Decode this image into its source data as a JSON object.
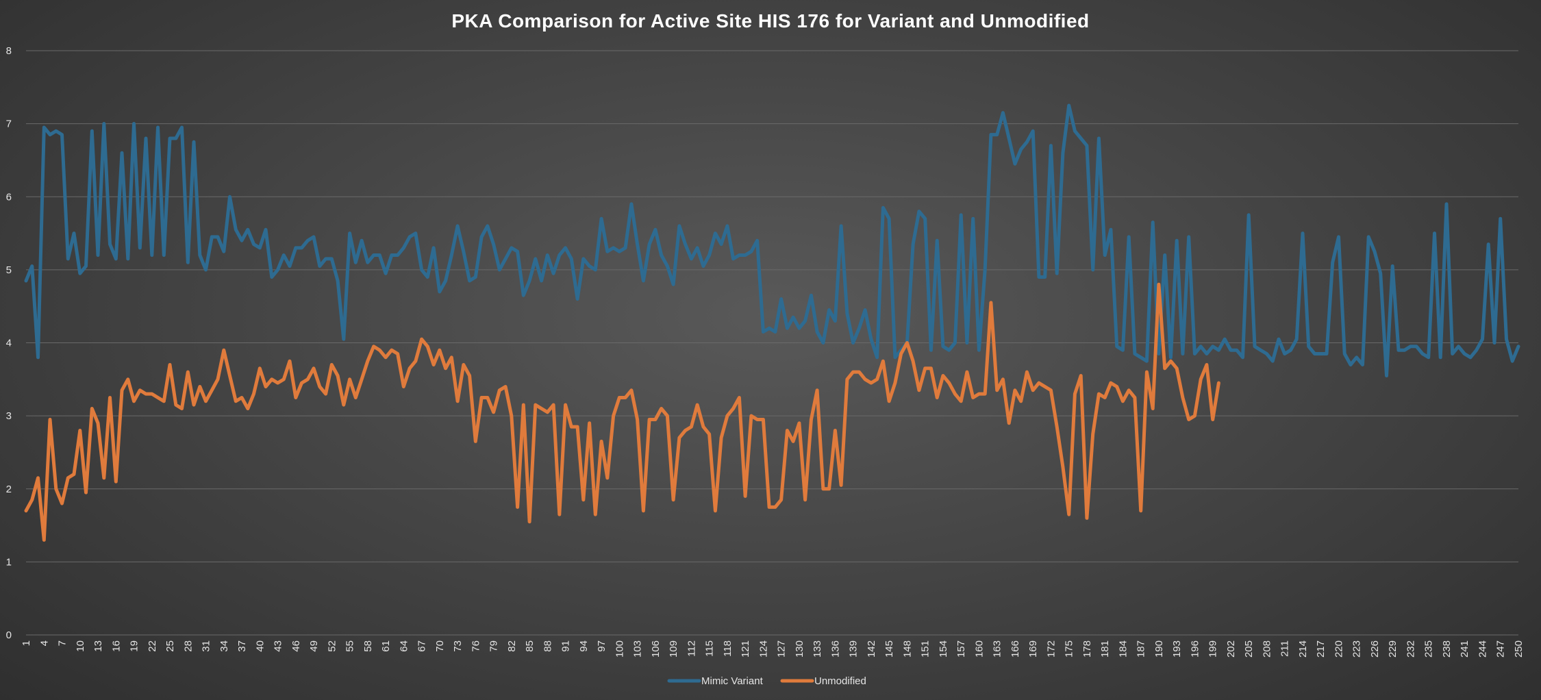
{
  "chart_data": {
    "type": "line",
    "title": "PKA Comparison for Active Site HIS 176 for Variant and Unmodified",
    "xlabel": "",
    "ylabel": "",
    "ylim": [
      0,
      8
    ],
    "yticks": [
      0,
      1,
      2,
      3,
      4,
      5,
      6,
      7,
      8
    ],
    "x_range": [
      1,
      250
    ],
    "x_tick_labels": [
      "1",
      "4",
      "7",
      "10",
      "13",
      "16",
      "19",
      "22",
      "25",
      "28",
      "31",
      "34",
      "37",
      "40",
      "43",
      "46",
      "49",
      "52",
      "55",
      "58",
      "61",
      "64",
      "67",
      "70",
      "73",
      "76",
      "79",
      "82",
      "85",
      "88",
      "91",
      "94",
      "97",
      "100",
      "103",
      "106",
      "109",
      "112",
      "115",
      "118",
      "121",
      "124",
      "127",
      "130",
      "133",
      "136",
      "139",
      "142",
      "145",
      "148",
      "151",
      "154",
      "157",
      "160",
      "163",
      "166",
      "169",
      "172",
      "175",
      "178",
      "181",
      "184",
      "187",
      "190",
      "193",
      "196",
      "199",
      "202",
      "205",
      "208",
      "211",
      "214",
      "217",
      "220",
      "223",
      "226",
      "229",
      "232",
      "235",
      "238",
      "241",
      "244",
      "247",
      "250"
    ],
    "grid": true,
    "legend_position": "bottom",
    "series": [
      {
        "name": "Mimic Variant",
        "color": "#2e6b91",
        "values": [
          4.85,
          5.05,
          3.8,
          6.95,
          6.85,
          6.9,
          6.85,
          5.15,
          5.5,
          4.95,
          5.05,
          6.9,
          5.2,
          7.0,
          5.35,
          5.15,
          6.6,
          5.15,
          7.0,
          5.3,
          6.8,
          5.2,
          6.95,
          5.2,
          6.8,
          6.8,
          6.95,
          5.1,
          6.75,
          5.2,
          5.0,
          5.45,
          5.45,
          5.25,
          6.0,
          5.55,
          5.4,
          5.55,
          5.35,
          5.3,
          5.55,
          4.9,
          5.0,
          5.2,
          5.05,
          5.3,
          5.3,
          5.4,
          5.45,
          5.05,
          5.15,
          5.15,
          4.85,
          4.05,
          5.5,
          5.1,
          5.4,
          5.1,
          5.2,
          5.2,
          4.95,
          5.2,
          5.2,
          5.3,
          5.45,
          5.5,
          5.0,
          4.9,
          5.3,
          4.7,
          4.85,
          5.2,
          5.6,
          5.25,
          4.85,
          4.9,
          5.45,
          5.6,
          5.35,
          5.0,
          5.15,
          5.3,
          5.25,
          4.65,
          4.85,
          5.15,
          4.85,
          5.2,
          4.95,
          5.2,
          5.3,
          5.15,
          4.6,
          5.15,
          5.05,
          5.0,
          5.7,
          5.25,
          5.3,
          5.25,
          5.3,
          5.9,
          5.35,
          4.85,
          5.35,
          5.55,
          5.2,
          5.05,
          4.8,
          5.6,
          5.35,
          5.15,
          5.3,
          5.05,
          5.2,
          5.5,
          5.35,
          5.6,
          5.15,
          5.2,
          5.2,
          5.25,
          5.4,
          4.15,
          4.2,
          4.15,
          4.6,
          4.2,
          4.35,
          4.2,
          4.3,
          4.65,
          4.15,
          4.0,
          4.45,
          4.3,
          5.6,
          4.4,
          4.0,
          4.2,
          4.45,
          4.05,
          3.8,
          5.85,
          5.7,
          3.8,
          3.9,
          4.0,
          5.35,
          5.8,
          5.7,
          3.9,
          5.4,
          3.95,
          3.9,
          4.0,
          5.75,
          4.0,
          5.7,
          3.9,
          5.0,
          6.85,
          6.85,
          7.15,
          6.8,
          6.45,
          6.65,
          6.75,
          6.9,
          4.9,
          4.9,
          6.7,
          4.95,
          6.6,
          7.25,
          6.9,
          6.8,
          6.7,
          5.0,
          6.8,
          5.2,
          5.55,
          3.95,
          3.9,
          5.45,
          3.85,
          3.8,
          3.75,
          5.65,
          3.85,
          5.2,
          3.8,
          5.4,
          3.85,
          5.45,
          3.85,
          3.95,
          3.85,
          3.95,
          3.9,
          4.05,
          3.9,
          3.9,
          3.8,
          5.75,
          3.95,
          3.9,
          3.85,
          3.75,
          4.05,
          3.85,
          3.9,
          4.05,
          5.5,
          3.95,
          3.85,
          3.85,
          3.85,
          5.1,
          5.45,
          3.85,
          3.7,
          3.8,
          3.7,
          5.45,
          5.25,
          4.95,
          3.55,
          5.05,
          3.9,
          3.9,
          3.95,
          3.95,
          3.85,
          3.8,
          5.5,
          3.8,
          5.9,
          3.85,
          3.95,
          3.85,
          3.8,
          3.9,
          4.05,
          5.35,
          4.0,
          5.7,
          4.05,
          3.75,
          3.95
        ]
      },
      {
        "name": "Unmodified",
        "color": "#e07b3c",
        "values": [
          1.7,
          1.85,
          2.15,
          1.3,
          2.95,
          2.0,
          1.8,
          2.15,
          2.2,
          2.8,
          1.95,
          3.1,
          2.9,
          2.15,
          3.25,
          2.1,
          3.35,
          3.5,
          3.2,
          3.35,
          3.3,
          3.3,
          3.25,
          3.2,
          3.7,
          3.15,
          3.1,
          3.6,
          3.15,
          3.4,
          3.2,
          3.35,
          3.5,
          3.9,
          3.55,
          3.2,
          3.25,
          3.1,
          3.3,
          3.65,
          3.4,
          3.5,
          3.45,
          3.5,
          3.75,
          3.25,
          3.45,
          3.5,
          3.65,
          3.4,
          3.3,
          3.7,
          3.55,
          3.15,
          3.5,
          3.25,
          3.5,
          3.75,
          3.95,
          3.9,
          3.8,
          3.9,
          3.85,
          3.4,
          3.65,
          3.75,
          4.05,
          3.95,
          3.7,
          3.9,
          3.65,
          3.8,
          3.2,
          3.7,
          3.55,
          2.65,
          3.25,
          3.25,
          3.05,
          3.35,
          3.4,
          3.0,
          1.75,
          3.15,
          1.55,
          3.15,
          3.1,
          3.05,
          3.15,
          1.65,
          3.15,
          2.85,
          2.85,
          1.85,
          2.9,
          1.65,
          2.65,
          2.15,
          3.0,
          3.25,
          3.25,
          3.35,
          2.95,
          1.7,
          2.95,
          2.95,
          3.1,
          3.0,
          1.85,
          2.7,
          2.8,
          2.85,
          3.15,
          2.85,
          2.75,
          1.7,
          2.7,
          3.0,
          3.1,
          3.25,
          1.9,
          3.0,
          2.95,
          2.95,
          1.75,
          1.75,
          1.85,
          2.8,
          2.65,
          2.9,
          1.85,
          2.95,
          3.35,
          2.0,
          2.0,
          2.8,
          2.05,
          3.5,
          3.6,
          3.6,
          3.5,
          3.45,
          3.5,
          3.75,
          3.2,
          3.45,
          3.85,
          4.0,
          3.75,
          3.35,
          3.65,
          3.65,
          3.25,
          3.55,
          3.45,
          3.3,
          3.2,
          3.6,
          3.25,
          3.3,
          3.3,
          4.55,
          3.35,
          3.5,
          2.9,
          3.35,
          3.2,
          3.6,
          3.35,
          3.45,
          3.4,
          3.35,
          2.85,
          2.3,
          1.65,
          3.3,
          3.55,
          1.6,
          2.75,
          3.3,
          3.25,
          3.45,
          3.4,
          3.2,
          3.35,
          3.25,
          1.7,
          3.6,
          3.1,
          4.8,
          3.65,
          3.75,
          3.65,
          3.25,
          2.95,
          3.0,
          3.5,
          3.7,
          2.95,
          3.45
        ]
      }
    ]
  }
}
